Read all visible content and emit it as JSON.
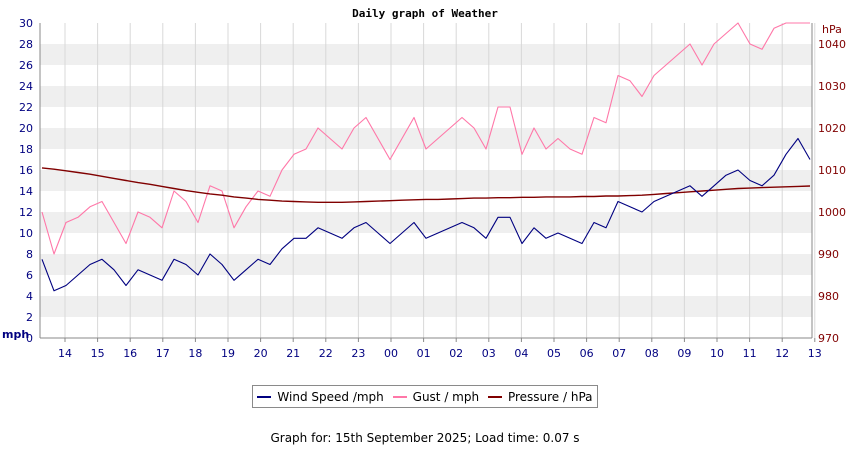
{
  "chart_data": {
    "type": "line",
    "title": "Daily graph of Weather",
    "left_axis": {
      "unit": "mph",
      "range": [
        0,
        30
      ],
      "ticks": [
        0,
        2,
        4,
        6,
        8,
        10,
        12,
        14,
        16,
        18,
        20,
        22,
        24,
        26,
        28,
        30
      ]
    },
    "right_axis": {
      "unit": "hPa",
      "range": [
        970,
        1045
      ],
      "ticks": [
        970,
        980,
        990,
        1000,
        1010,
        1020,
        1030,
        1040
      ]
    },
    "x_tick_labels": [
      "14",
      "15",
      "16",
      "17",
      "18",
      "19",
      "20",
      "21",
      "22",
      "23",
      "00",
      "01",
      "02",
      "03",
      "04",
      "05",
      "06",
      "07",
      "08",
      "09",
      "10",
      "11",
      "12",
      "13"
    ],
    "grid": "horizontal bands every 2 mph, vertical lines at each hour label",
    "legend_position": "bottom",
    "series": [
      {
        "name": "Wind Speed /mph",
        "color": "#000080",
        "axis": "left",
        "values": [
          7.5,
          4.5,
          5.0,
          6.0,
          7.0,
          7.5,
          6.5,
          5.0,
          6.5,
          6.0,
          5.5,
          7.5,
          7.0,
          6.0,
          8.0,
          7.0,
          5.5,
          6.5,
          7.5,
          7.0,
          8.5,
          9.5,
          9.5,
          10.5,
          10.0,
          9.5,
          10.5,
          11.0,
          10.0,
          9.0,
          10.0,
          11.0,
          9.5,
          10.0,
          10.5,
          11.0,
          10.5,
          9.5,
          11.5,
          11.5,
          9.0,
          10.5,
          9.5,
          10.0,
          9.5,
          9.0,
          11.0,
          10.5,
          13.0,
          12.5,
          12.0,
          13.0,
          13.5,
          14.0,
          14.5,
          13.5,
          14.5,
          15.5,
          16.0,
          15.0,
          14.5,
          15.5,
          17.5,
          19.0,
          17.0
        ]
      },
      {
        "name": "Gust / mph",
        "color": "#ff77a8",
        "axis": "left",
        "values": [
          12.0,
          8.0,
          11.0,
          11.5,
          12.5,
          13.0,
          11.0,
          9.0,
          12.0,
          11.5,
          10.5,
          14.0,
          13.0,
          11.0,
          14.5,
          14.0,
          10.5,
          12.5,
          14.0,
          13.5,
          16.0,
          17.5,
          18.0,
          20.0,
          19.0,
          18.0,
          20.0,
          21.0,
          19.0,
          17.0,
          19.0,
          21.0,
          18.0,
          19.0,
          20.0,
          21.0,
          20.0,
          18.0,
          22.0,
          22.0,
          17.5,
          20.0,
          18.0,
          19.0,
          18.0,
          17.5,
          21.0,
          20.5,
          25.0,
          24.5,
          23.0,
          25.0,
          26.0,
          27.0,
          28.0,
          26.0,
          28.0,
          29.0,
          30.0,
          28.0,
          27.5,
          29.5,
          31.0,
          33.0,
          30.0
        ]
      },
      {
        "name": "Pressure / hPa",
        "color": "#800000",
        "axis": "right",
        "values": [
          1010.5,
          1010.2,
          1009.8,
          1009.4,
          1009.0,
          1008.5,
          1008.0,
          1007.5,
          1007.0,
          1006.6,
          1006.1,
          1005.6,
          1005.1,
          1004.7,
          1004.3,
          1004.0,
          1003.6,
          1003.3,
          1003.0,
          1002.8,
          1002.6,
          1002.5,
          1002.4,
          1002.3,
          1002.3,
          1002.3,
          1002.4,
          1002.5,
          1002.6,
          1002.7,
          1002.8,
          1002.9,
          1003.0,
          1003.0,
          1003.1,
          1003.2,
          1003.3,
          1003.3,
          1003.4,
          1003.4,
          1003.5,
          1003.5,
          1003.6,
          1003.6,
          1003.6,
          1003.7,
          1003.7,
          1003.8,
          1003.8,
          1003.9,
          1004.0,
          1004.2,
          1004.4,
          1004.6,
          1004.8,
          1005.0,
          1005.2,
          1005.4,
          1005.6,
          1005.7,
          1005.8,
          1005.9,
          1006.0,
          1006.1,
          1006.2
        ]
      }
    ]
  },
  "legend": {
    "wind": "Wind Speed /mph",
    "gust": "Gust / mph",
    "pressure": "Pressure / hPa"
  },
  "footer_text": "Graph for: 15th September 2025; Load time: 0.07 s"
}
